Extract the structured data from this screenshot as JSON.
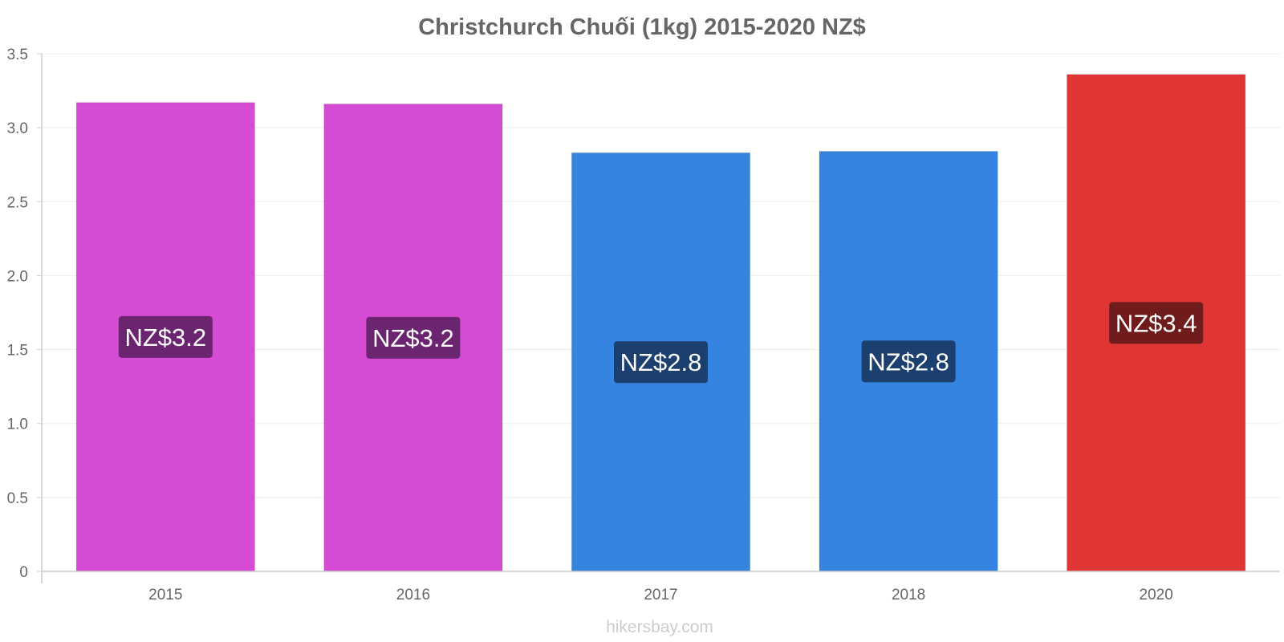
{
  "chart_data": {
    "type": "bar",
    "title": "Christchurch Chuối (1kg) 2015-2020 NZ$",
    "xlabel": "",
    "ylabel": "",
    "categories": [
      "2015",
      "2016",
      "2017",
      "2018",
      "2020"
    ],
    "values": [
      3.17,
      3.16,
      2.83,
      2.84,
      3.36
    ],
    "data_labels": [
      "NZ$3.2",
      "NZ$3.2",
      "NZ$2.8",
      "NZ$2.8",
      "NZ$3.4"
    ],
    "bar_colors": [
      "#d64bd4",
      "#d64bd4",
      "#3584e0",
      "#3584e0",
      "#e03535"
    ],
    "label_bg_colors": [
      "#6b2470",
      "#6b2470",
      "#1b3f6e",
      "#1b3f6e",
      "#701c1c"
    ],
    "ylim": [
      0,
      3.5
    ],
    "yticks": [
      0,
      0.5,
      1.0,
      1.5,
      2.0,
      2.5,
      3.0,
      3.5
    ],
    "ytick_labels": [
      "0",
      "0.5",
      "1.0",
      "1.5",
      "2.0",
      "2.5",
      "3.0",
      "3.5"
    ],
    "grid": true,
    "legend": "none"
  },
  "watermark": "hikersbay.com",
  "colors": {
    "title": "#666666",
    "axis": "#cccccc",
    "grid": "#eeeeee",
    "watermark": "#cccccc"
  }
}
